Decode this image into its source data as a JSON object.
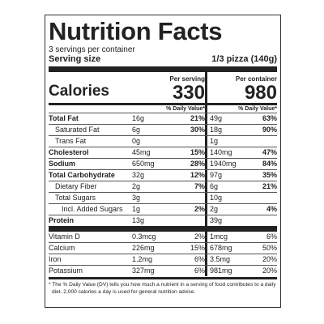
{
  "header": {
    "title": "Nutrition Facts",
    "servings": "3 servings per container",
    "serving_size_label": "Serving size",
    "serving_size": "1/3 pizza (140g)"
  },
  "calories": {
    "label": "Calories",
    "per_serving_label": "Per serving",
    "per_serving": "330",
    "per_container_label": "Per container",
    "per_container": "980"
  },
  "dv_headers": [
    "% Daily Value*",
    "% Daily Value*"
  ],
  "nutrients": [
    {
      "name": "Total Fat",
      "serving": "16g",
      "serving_dv": "21%",
      "container": "49g",
      "container_dv": "63%"
    },
    {
      "name": "Saturated Fat",
      "serving": "6g",
      "serving_dv": "30%",
      "container": "18g",
      "container_dv": "90%"
    },
    {
      "name": "Trans Fat",
      "serving": "0g",
      "container": "1g"
    },
    {
      "name": "Cholesterol",
      "serving": "45mg",
      "serving_dv": "15%",
      "container": "140mg",
      "container_dv": "47%"
    },
    {
      "name": "Sodium",
      "serving": "650mg",
      "serving_dv": "28%",
      "container": "1940mg",
      "container_dv": "84%"
    },
    {
      "name": "Total Carbohydrate",
      "serving": "32g",
      "serving_dv": "12%",
      "container": "97g",
      "container_dv": "35%"
    },
    {
      "name": "Dietary Fiber",
      "serving": "2g",
      "serving_dv": "7%",
      "container": "6g",
      "container_dv": "21%"
    },
    {
      "name": "Total Sugars",
      "serving": "3g",
      "container": "10g"
    },
    {
      "name": "Incl. Added Sugars",
      "serving": "1g",
      "serving_dv": "2%",
      "container": "2g",
      "container_dv": "4%"
    },
    {
      "name": "Protein",
      "serving": "13g",
      "container": "39g"
    }
  ],
  "vitamins": [
    {
      "name": "Vitamin D",
      "serving": "0.3mcg",
      "serving_dv": "2%",
      "container": "1mcg",
      "container_dv": "6%"
    },
    {
      "name": "Calcium",
      "serving": "226mg",
      "serving_dv": "15%",
      "container": "678mg",
      "container_dv": "50%"
    },
    {
      "name": "Iron",
      "serving": "1.2mg",
      "serving_dv": "6%",
      "container": "3.5mg",
      "container_dv": "20%"
    },
    {
      "name": "Potassium",
      "serving": "327mg",
      "serving_dv": "6%",
      "container": "981mg",
      "container_dv": "20%"
    }
  ],
  "footnote": "* The % Daily Value (DV) tells you how much a nutrient in a serving of food contributes to a daily diet. 2,000 calories a day is used for general nutrition advice."
}
